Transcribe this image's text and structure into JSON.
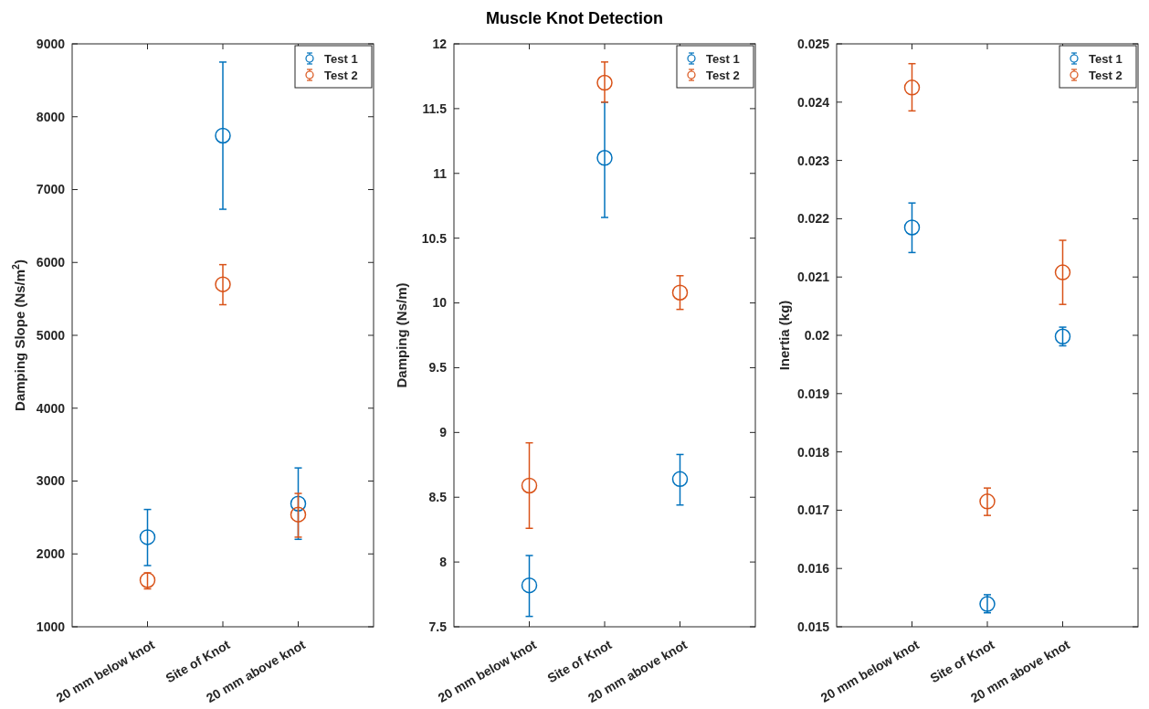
{
  "chart_data": [
    {
      "type": "scatter",
      "ylabel": "Damping Slope (Ns/m$^{2}$)",
      "categories": [
        "20 mm below knot",
        "Site of Knot",
        "20 mm above knot"
      ],
      "ylim": [
        1000,
        9000
      ],
      "yticks": [
        1000,
        2000,
        3000,
        4000,
        5000,
        6000,
        7000,
        8000,
        9000
      ],
      "grid": false,
      "legend": "top right",
      "marker": "circle",
      "series": [
        {
          "name": "Test 1",
          "color": "#0072bd",
          "values": [
            2230,
            7740,
            2690
          ],
          "errors": [
            [
              1840,
              2610
            ],
            [
              6730,
              8750
            ],
            [
              2200,
              3180
            ]
          ]
        },
        {
          "name": "Test 2",
          "color": "#d95319",
          "values": [
            1640,
            5700,
            2540
          ],
          "errors": [
            [
              1520,
              1740
            ],
            [
              5420,
              5970
            ],
            [
              2230,
              2830
            ]
          ]
        }
      ]
    },
    {
      "type": "scatter",
      "title": "Muscle Knot Detection",
      "ylabel": "Damping (Ns/m)",
      "categories": [
        "20 mm below knot",
        "Site of Knot",
        "20 mm above knot"
      ],
      "ylim": [
        7.5,
        12
      ],
      "yticks": [
        7.5,
        8,
        8.5,
        9,
        9.5,
        10,
        10.5,
        11,
        11.5,
        12
      ],
      "grid": false,
      "legend": "top right",
      "marker": "circle",
      "series": [
        {
          "name": "Test 1",
          "color": "#0072bd",
          "values": [
            7.82,
            11.12,
            8.64
          ],
          "errors": [
            [
              7.58,
              8.05
            ],
            [
              10.66,
              11.55
            ],
            [
              8.44,
              8.83
            ]
          ]
        },
        {
          "name": "Test 2",
          "color": "#d95319",
          "values": [
            8.59,
            11.7,
            10.08
          ],
          "errors": [
            [
              8.26,
              8.92
            ],
            [
              11.55,
              11.86
            ],
            [
              9.95,
              10.21
            ]
          ]
        }
      ]
    },
    {
      "type": "scatter",
      "ylabel": "Inertia (kg)",
      "categories": [
        "20 mm below knot",
        "Site of Knot",
        "20 mm above knot"
      ],
      "ylim": [
        0.015,
        0.025
      ],
      "yticks": [
        0.015,
        0.016,
        0.017,
        0.018,
        0.019,
        0.02,
        0.021,
        0.022,
        0.023,
        0.024,
        0.025
      ],
      "grid": false,
      "legend": "top right",
      "marker": "circle",
      "series": [
        {
          "name": "Test 1",
          "color": "#0072bd",
          "values": [
            0.02185,
            0.01539,
            0.01998
          ],
          "errors": [
            [
              0.02142,
              0.02227
            ],
            [
              0.01524,
              0.01555
            ],
            [
              0.01982,
              0.02014
            ]
          ]
        },
        {
          "name": "Test 2",
          "color": "#d95319",
          "values": [
            0.02425,
            0.01715,
            0.02108
          ],
          "errors": [
            [
              0.02385,
              0.02466
            ],
            [
              0.01691,
              0.01738
            ],
            [
              0.02053,
              0.02163
            ]
          ]
        }
      ]
    }
  ]
}
